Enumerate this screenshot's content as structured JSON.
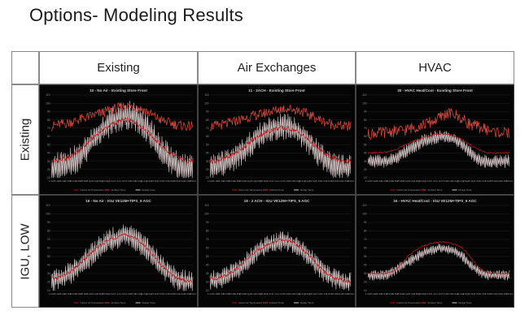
{
  "slide": {
    "title": "Options- Modeling Results"
  },
  "columns": [
    "Existing",
    "Air Exchanges",
    "HVAC"
  ],
  "rows": [
    "Existing",
    "IGU, LOW"
  ],
  "colors": {
    "outdoor": "#d9483e",
    "interior": "#b81818",
    "envelope": "#f1dede",
    "background": "#050505",
    "grid": "#2a2a2a",
    "text": "#cfcfcf"
  },
  "chart_data": [
    {
      "type": "line",
      "title": "10 - No Air - Existing Store Front",
      "yticks": [
        10,
        20,
        30,
        40,
        50,
        60,
        70,
        80,
        90,
        100,
        110
      ],
      "ylim": [
        10,
        110
      ],
      "xticks": [
        "1-Jan",
        "15-Jan",
        "29-Jan",
        "12-Feb",
        "26-Feb",
        "11-Mar",
        "25-Mar",
        "8-Apr",
        "22-Apr",
        "6-May",
        "20-May",
        "3-Jun",
        "17-Jun",
        "1-Jul",
        "15-Jul",
        "29-Jul",
        "12-Aug",
        "26-Aug",
        "9-Sep",
        "23-Sep",
        "7-Oct",
        "21-Oct",
        "4-Nov",
        "18-Nov",
        "2-Dec",
        "16-Dec",
        "30-Dec"
      ],
      "legend": [
        "Interior Air Temperature",
        "Ambient Temp",
        "Design Temp"
      ],
      "series": [
        {
          "key": "envelope",
          "values": [
            22,
            23,
            24,
            26,
            30,
            35,
            42,
            50,
            58,
            66,
            72,
            78,
            82,
            85,
            86,
            84,
            80,
            74,
            66,
            56,
            46,
            38,
            30,
            25,
            22,
            20,
            20
          ],
          "amplitude": 18
        },
        {
          "key": "interior",
          "values": [
            30,
            31,
            32,
            34,
            38,
            42,
            48,
            54,
            60,
            66,
            70,
            74,
            77,
            79,
            80,
            78,
            75,
            70,
            64,
            57,
            50,
            44,
            39,
            35,
            32,
            31,
            30
          ],
          "amplitude": 3
        },
        {
          "key": "outdoor",
          "values": [
            72,
            74,
            75,
            76,
            78,
            80,
            82,
            84,
            86,
            88,
            90,
            92,
            94,
            96,
            97,
            96,
            94,
            92,
            88,
            84,
            80,
            78,
            76,
            74,
            73,
            72,
            72
          ],
          "amplitude": 6
        }
      ]
    },
    {
      "type": "line",
      "title": "11 - 2ACH - Existing Store Front",
      "yticks": [
        10,
        20,
        30,
        40,
        50,
        60,
        70,
        80,
        90,
        100,
        110
      ],
      "ylim": [
        10,
        110
      ],
      "xticks": [
        "1-Jan",
        "15-Jan",
        "29-Jan",
        "12-Feb",
        "26-Feb",
        "11-Mar",
        "25-Mar",
        "8-Apr",
        "22-Apr",
        "6-May",
        "20-May",
        "3-Jun",
        "17-Jun",
        "1-Jul",
        "15-Jul",
        "29-Jul",
        "12-Aug",
        "26-Aug",
        "9-Sep",
        "23-Sep",
        "7-Oct",
        "21-Oct",
        "4-Nov",
        "18-Nov",
        "2-Dec",
        "16-Dec",
        "30-Dec"
      ],
      "legend": [
        "Interior Air Temperature",
        "Ambient Temp",
        "Design Temp"
      ],
      "series": [
        {
          "key": "envelope",
          "values": [
            24,
            25,
            26,
            28,
            32,
            36,
            42,
            48,
            54,
            60,
            64,
            68,
            70,
            72,
            72,
            70,
            67,
            62,
            56,
            48,
            40,
            34,
            28,
            25,
            23,
            22,
            22
          ],
          "amplitude": 16
        },
        {
          "key": "interior",
          "values": [
            30,
            31,
            32,
            34,
            37,
            41,
            46,
            51,
            56,
            61,
            64,
            67,
            69,
            70,
            70,
            69,
            66,
            62,
            57,
            51,
            45,
            40,
            36,
            33,
            31,
            30,
            30
          ],
          "amplitude": 3
        },
        {
          "key": "outdoor",
          "values": [
            72,
            73,
            74,
            75,
            77,
            79,
            81,
            83,
            85,
            86,
            88,
            90,
            91,
            93,
            94,
            93,
            92,
            90,
            87,
            84,
            81,
            78,
            76,
            74,
            73,
            72,
            72
          ],
          "amplitude": 6
        }
      ]
    },
    {
      "type": "line",
      "title": "30 - HVAC Heat/Cool - Existing Store Front",
      "yticks": [
        10,
        20,
        30,
        40,
        50,
        60,
        70,
        80,
        90,
        100,
        110
      ],
      "ylim": [
        10,
        110
      ],
      "xticks": [
        "1-Jan",
        "15-Jan",
        "29-Jan",
        "12-Feb",
        "26-Feb",
        "11-Mar",
        "25-Mar",
        "8-Apr",
        "22-Apr",
        "6-May",
        "20-May",
        "3-Jun",
        "17-Jun",
        "1-Jul",
        "15-Jul",
        "29-Jul",
        "12-Aug",
        "26-Aug",
        "9-Sep",
        "23-Sep",
        "7-Oct",
        "21-Oct",
        "4-Nov",
        "18-Nov",
        "2-Dec",
        "16-Dec",
        "30-Dec"
      ],
      "legend": [
        "Interior Air Temperature",
        "Ambient Temp",
        "Design Temp"
      ],
      "series": [
        {
          "key": "envelope",
          "values": [
            30,
            30,
            30,
            30,
            32,
            34,
            38,
            42,
            46,
            50,
            54,
            56,
            58,
            60,
            60,
            58,
            56,
            52,
            46,
            40,
            34,
            30,
            30,
            30,
            30,
            30,
            30
          ],
          "amplitude": 8
        },
        {
          "key": "interior",
          "values": [
            40,
            40,
            40,
            41,
            42,
            44,
            47,
            50,
            53,
            56,
            58,
            60,
            62,
            63,
            63,
            62,
            60,
            57,
            53,
            49,
            45,
            42,
            40,
            40,
            40,
            40,
            40
          ],
          "amplitude": 1
        },
        {
          "key": "outdoor",
          "values": [
            62,
            64,
            64,
            65,
            66,
            66,
            67,
            68,
            70,
            72,
            74,
            76,
            78,
            82,
            86,
            88,
            86,
            82,
            78,
            74,
            72,
            70,
            68,
            66,
            65,
            64,
            64
          ],
          "amplitude": 7
        }
      ]
    },
    {
      "type": "line",
      "title": "16 - No Air - IGU VE12M+TIPS_6 AGC",
      "yticks": [
        10,
        20,
        30,
        40,
        50,
        60,
        70,
        80,
        90,
        100,
        110
      ],
      "ylim": [
        10,
        110
      ],
      "xticks": [
        "1-Jan",
        "15-Jan",
        "29-Jan",
        "12-Feb",
        "26-Feb",
        "11-Mar",
        "25-Mar",
        "8-Apr",
        "22-Apr",
        "6-May",
        "20-May",
        "3-Jun",
        "17-Jun",
        "1-Jul",
        "15-Jul",
        "29-Jul",
        "12-Aug",
        "26-Aug",
        "9-Sep",
        "23-Sep",
        "7-Oct",
        "21-Oct",
        "4-Nov",
        "18-Nov",
        "2-Dec",
        "16-Dec",
        "30-Dec"
      ],
      "legend": [
        "Interior Air Temperature",
        "Ambient Temp",
        "Design Temp"
      ],
      "series": [
        {
          "key": "envelope",
          "values": [
            22,
            23,
            25,
            28,
            32,
            38,
            44,
            50,
            56,
            62,
            66,
            70,
            72,
            74,
            74,
            72,
            68,
            62,
            56,
            48,
            40,
            34,
            28,
            24,
            22,
            20,
            20
          ],
          "amplitude": 14
        },
        {
          "key": "interior",
          "values": [
            24,
            25,
            27,
            30,
            34,
            40,
            46,
            52,
            58,
            63,
            67,
            71,
            73,
            75,
            75,
            73,
            69,
            63,
            57,
            49,
            41,
            35,
            29,
            25,
            23,
            21,
            21
          ],
          "amplitude": 2
        }
      ]
    },
    {
      "type": "line",
      "title": "18 - 2 ACH - IGU VE12M+TIPS_6 AGC",
      "yticks": [
        10,
        20,
        30,
        40,
        50,
        60,
        70,
        80,
        90,
        100,
        110
      ],
      "ylim": [
        10,
        110
      ],
      "xticks": [
        "1-Jan",
        "15-Jan",
        "29-Jan",
        "12-Feb",
        "26-Feb",
        "11-Mar",
        "25-Mar",
        "8-Apr",
        "22-Apr",
        "6-May",
        "20-May",
        "3-Jun",
        "17-Jun",
        "1-Jul",
        "15-Jul",
        "29-Jul",
        "12-Aug",
        "26-Aug",
        "9-Sep",
        "23-Sep",
        "7-Oct",
        "21-Oct",
        "4-Nov",
        "18-Nov",
        "2-Dec",
        "16-Dec",
        "30-Dec"
      ],
      "legend": [
        "Interior Air Temperature",
        "Ambient Temp",
        "Design Temp"
      ],
      "series": [
        {
          "key": "envelope",
          "values": [
            22,
            22,
            24,
            26,
            30,
            34,
            40,
            46,
            52,
            57,
            61,
            64,
            66,
            68,
            68,
            66,
            63,
            58,
            52,
            45,
            38,
            32,
            27,
            24,
            22,
            20,
            20
          ],
          "amplitude": 12
        },
        {
          "key": "interior",
          "values": [
            24,
            24,
            26,
            28,
            32,
            36,
            42,
            48,
            53,
            58,
            62,
            65,
            67,
            69,
            69,
            67,
            64,
            59,
            53,
            46,
            39,
            33,
            28,
            25,
            23,
            21,
            21
          ],
          "amplitude": 2
        }
      ]
    },
    {
      "type": "line",
      "title": "34 - HVAC Heat/Cool - IGU VE12M+TIPS_6 AGC",
      "yticks": [
        10,
        20,
        30,
        40,
        50,
        60,
        70,
        80,
        90,
        100,
        110
      ],
      "ylim": [
        10,
        110
      ],
      "xticks": [
        "1-Jan",
        "15-Jan",
        "29-Jan",
        "12-Feb",
        "26-Feb",
        "11-Mar",
        "25-Mar",
        "8-Apr",
        "22-Apr",
        "6-May",
        "20-May",
        "3-Jun",
        "17-Jun",
        "1-Jul",
        "15-Jul",
        "29-Jul",
        "12-Aug",
        "26-Aug",
        "9-Sep",
        "23-Sep",
        "7-Oct",
        "21-Oct",
        "4-Nov",
        "18-Nov",
        "2-Dec",
        "16-Dec",
        "30-Dec"
      ],
      "legend": [
        "Interior Air Temperature",
        "Ambient Temp",
        "Design Temp"
      ],
      "series": [
        {
          "key": "envelope",
          "values": [
            28,
            28,
            28,
            28,
            30,
            34,
            38,
            42,
            46,
            50,
            54,
            56,
            58,
            60,
            60,
            58,
            56,
            52,
            46,
            40,
            34,
            30,
            28,
            28,
            28,
            28,
            28
          ],
          "amplitude": 6
        },
        {
          "key": "interior",
          "values": [
            30,
            30,
            30,
            30,
            31,
            34,
            40,
            48,
            54,
            58,
            62,
            64,
            66,
            67,
            67,
            66,
            64,
            62,
            56,
            48,
            40,
            34,
            31,
            30,
            30,
            30,
            30
          ],
          "amplitude": 1
        }
      ]
    }
  ]
}
